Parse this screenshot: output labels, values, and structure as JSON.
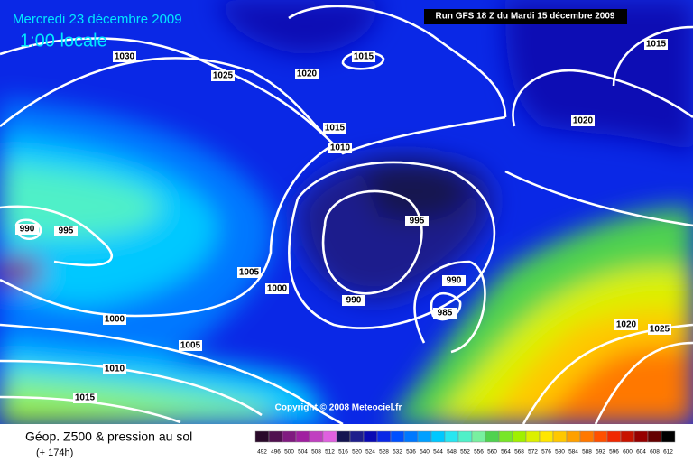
{
  "header": {
    "date": "Mercredi 23 décembre 2009",
    "time": "1:00 locale",
    "run": "Run GFS 18 Z du Mardi 15 décembre 2009"
  },
  "isobar_labels": [
    "1030",
    "1025",
    "1020",
    "1015",
    "1015",
    "1015",
    "1010",
    "1020",
    "990",
    "995",
    "995",
    "1005",
    "1000",
    "990",
    "990",
    "985",
    "1000",
    "1005",
    "1010",
    "1015",
    "1020",
    "1025"
  ],
  "copyright": "Copyright © 2008 Meteociel.fr",
  "legend": {
    "title": "Géop. Z500 & pression au sol",
    "lead": "(+ 174h)",
    "scale": [
      "492",
      "496",
      "500",
      "504",
      "508",
      "512",
      "516",
      "520",
      "524",
      "528",
      "532",
      "536",
      "540",
      "544",
      "548",
      "552",
      "556",
      "560",
      "564",
      "568",
      "572",
      "576",
      "580",
      "584",
      "588",
      "592",
      "596",
      "600",
      "604",
      "608",
      "612"
    ],
    "colors": [
      "#2a0a2a",
      "#50104f",
      "#801a80",
      "#a020a0",
      "#c040c0",
      "#e060e0",
      "#141450",
      "#1e1e8c",
      "#0a0ab4",
      "#0a28e6",
      "#0050ff",
      "#0078ff",
      "#00a0ff",
      "#00c8ff",
      "#28e6f0",
      "#50f0c8",
      "#78f0a0",
      "#50d250",
      "#78e628",
      "#a0f000",
      "#dcf000",
      "#ffe600",
      "#ffc800",
      "#ffa000",
      "#ff7800",
      "#ff5000",
      "#f02800",
      "#c81400",
      "#960000",
      "#640000",
      "#000000"
    ]
  }
}
